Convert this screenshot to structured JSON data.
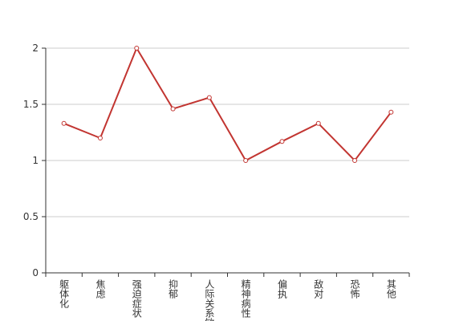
{
  "chart_data": {
    "type": "line",
    "categories": [
      "躯体化",
      "焦虑",
      "强迫症状",
      "抑郁",
      "人际关系敏感",
      "精神病性",
      "偏执",
      "敌对",
      "恐怖",
      "其他"
    ],
    "series": [
      {
        "color": "#c23531",
        "values": [
          1.33,
          1.2,
          2,
          1.46,
          1.56,
          1,
          1.17,
          1.33,
          1,
          1.43
        ]
      }
    ],
    "ylim": [
      0,
      2
    ],
    "yticks": [
      0,
      0.5,
      1,
      1.5,
      2
    ],
    "grid": true
  }
}
